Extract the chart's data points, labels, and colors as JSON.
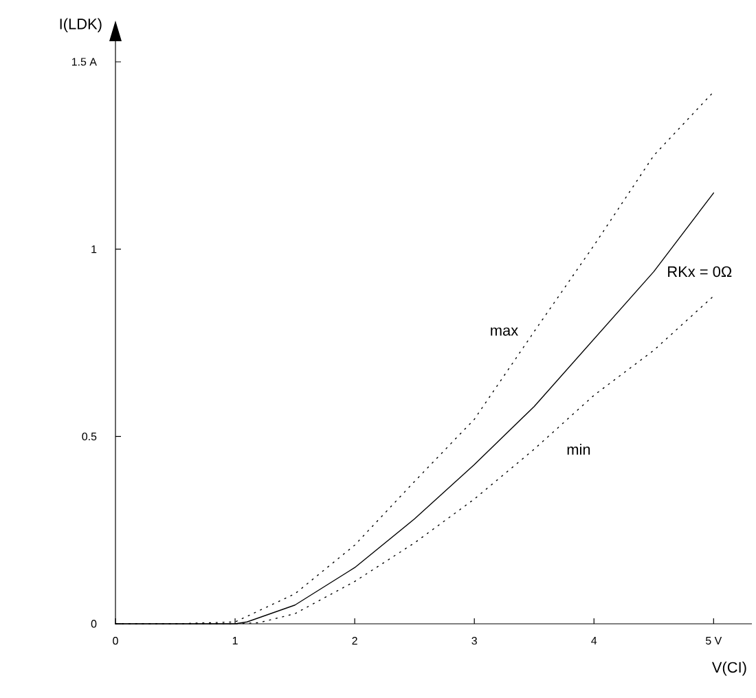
{
  "chart_data": {
    "type": "line",
    "xlabel": "V(CI)",
    "ylabel": "I(LDK)",
    "xlim": [
      0,
      5.32
    ],
    "ylim": [
      0,
      1.555
    ],
    "xticks": [
      0,
      1,
      2,
      3,
      4,
      {
        "value": 5,
        "label": "5 V"
      }
    ],
    "yticks": [
      0,
      {
        "value": 0.5,
        "label": "0.5"
      },
      1,
      {
        "value": 1.5,
        "label": "1.5 A"
      }
    ],
    "marker": "none",
    "series": [
      {
        "name": "RKx = 0Ω",
        "color": "#000000",
        "line_style": "solid",
        "x": [
          0,
          0.5,
          1,
          1.1,
          1.5,
          2,
          2.5,
          3,
          3.5,
          4,
          4.5,
          5
        ],
        "values": [
          0,
          0,
          0,
          0.005,
          0.05,
          0.15,
          0.28,
          0.425,
          0.58,
          0.76,
          0.94,
          1.15
        ]
      },
      {
        "name": "max",
        "color": "#000000",
        "line_style": "dotted",
        "x": [
          0,
          0.5,
          1,
          1.5,
          2,
          2.5,
          3,
          3.5,
          4,
          4.5,
          5
        ],
        "values": [
          0,
          0,
          0.005,
          0.08,
          0.21,
          0.38,
          0.546,
          0.78,
          1.01,
          1.25,
          1.42
        ]
      },
      {
        "name": "min",
        "color": "#000000",
        "line_style": "dotted",
        "x": [
          0,
          0.5,
          1,
          1.2,
          1.5,
          2,
          2.5,
          3,
          3.5,
          4,
          4.5,
          5
        ],
        "values": [
          0,
          0,
          0,
          0.003,
          0.027,
          0.113,
          0.216,
          0.333,
          0.466,
          0.61,
          0.73,
          0.875
        ]
      }
    ]
  }
}
